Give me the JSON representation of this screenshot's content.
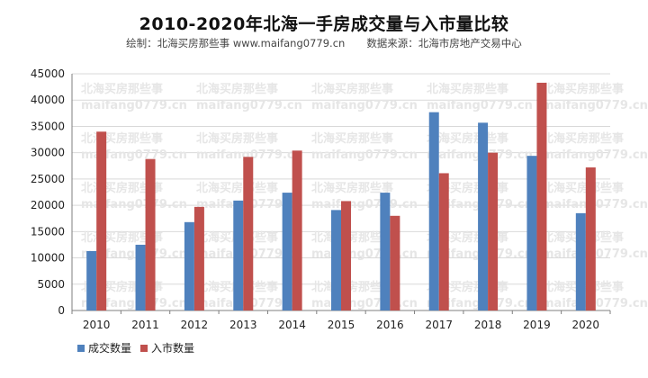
{
  "colors": {
    "deal": "#4f81bd",
    "enter": "#c0504d",
    "grid": "#d9d9d9",
    "axis": "#7f7f7f"
  },
  "header": {
    "title": "2010-2020年北海一手房成交量与入市量比较",
    "credit": "绘制：北海买房那些事 www.maifang0779.cn",
    "source": "数据来源：北海市房地产交易中心"
  },
  "watermark": {
    "line1": "北海买房那些事",
    "line2": "maifang0779.cn"
  },
  "chart_data": {
    "type": "bar",
    "categories": [
      "2010",
      "2011",
      "2012",
      "2013",
      "2014",
      "2015",
      "2016",
      "2017",
      "2018",
      "2019",
      "2020"
    ],
    "series": [
      {
        "name": "成交数量",
        "values": [
          11300,
          12500,
          16800,
          20900,
          22400,
          19100,
          22400,
          37700,
          35700,
          29400,
          18500
        ]
      },
      {
        "name": "入市数量",
        "values": [
          34000,
          28800,
          19700,
          29200,
          30400,
          20800,
          18000,
          26100,
          30000,
          43300,
          27200
        ]
      }
    ],
    "ylim": [
      0,
      45000
    ],
    "yticks": [
      0,
      5000,
      10000,
      15000,
      20000,
      25000,
      30000,
      35000,
      40000,
      45000
    ],
    "grid": true,
    "legend": "bottom-left"
  }
}
